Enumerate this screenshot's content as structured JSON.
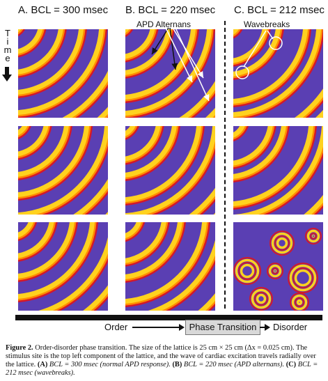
{
  "columns": [
    {
      "title": "A. BCL = 300 msec",
      "annotation": ""
    },
    {
      "title": "B. BCL = 220 msec",
      "annotation": "APD Alternans"
    },
    {
      "title": "C. BCL = 212 msec",
      "annotation": "Wavebreaks"
    }
  ],
  "time_label": "Time",
  "axis": {
    "order_label": "Order",
    "phase_label": "Phase Transition",
    "disorder_label": "Disorder"
  },
  "caption": {
    "figure": "Figure 2.",
    "text1": " Order-disorder phase transition. The size of the lattice is 25 cm × 25 cm (Δx = 0.025 cm). The stimulus site is the top left component of the lattice, and the wave of cardiac excitation travels radially over the lattice. ",
    "a_label": "(A)",
    "a_text": " BCL = 300 msec (normal APD response). ",
    "b_label": "(B)",
    "b_text": " BCL = 220 msec (APD alternans). ",
    "c_label": "(C)",
    "c_text": " BCL = 212 msec (wavebreaks)."
  },
  "colors": {
    "background_wave": "#5a3fb3",
    "wave_yellow": "#ffd21f",
    "wave_orange": "#ff8c00",
    "wave_red": "#d4182a",
    "annotation_arrow": "#ffffff"
  }
}
